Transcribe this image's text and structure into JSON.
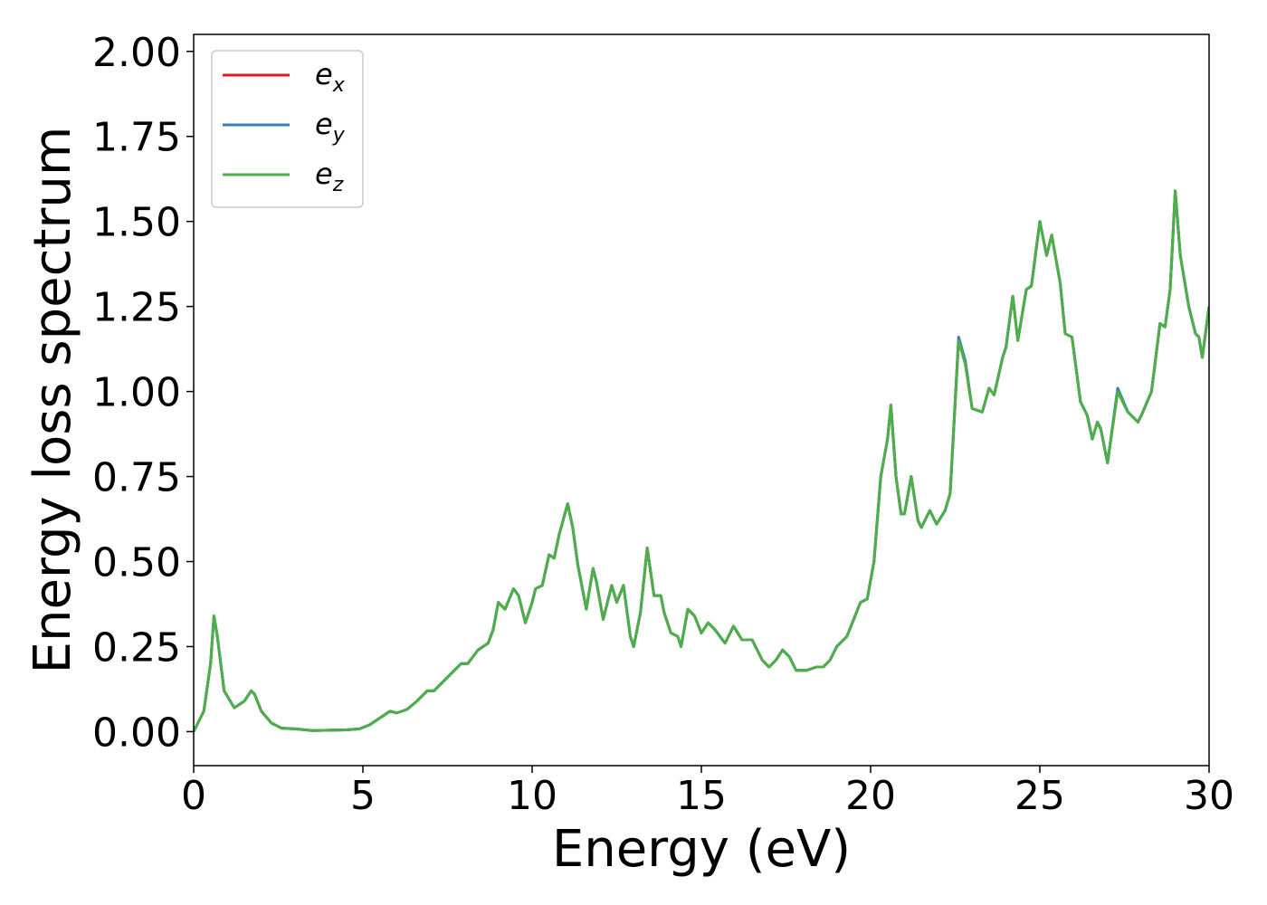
{
  "chart_data": {
    "type": "line",
    "xlabel": "Energy (eV)",
    "ylabel": "Energy loss spectrum",
    "xlim": [
      0,
      30
    ],
    "ylim": [
      -0.1,
      2.05
    ],
    "xticks": [
      0,
      5,
      10,
      15,
      20,
      25,
      30
    ],
    "yticks": [
      {
        "value": 0,
        "label": "0.00"
      },
      {
        "value": 0.25,
        "label": "0.25"
      },
      {
        "value": 0.5,
        "label": "0.50"
      },
      {
        "value": 0.75,
        "label": "0.75"
      },
      {
        "value": 1.0,
        "label": "1.00"
      },
      {
        "value": 1.25,
        "label": "1.25"
      },
      {
        "value": 1.5,
        "label": "1.50"
      },
      {
        "value": 1.75,
        "label": "1.75"
      },
      {
        "value": 2.0,
        "label": "2.00"
      }
    ],
    "grid": false,
    "legend": "upper left",
    "x": [
      0,
      0.3,
      0.5,
      0.6,
      0.7,
      0.9,
      1.2,
      1.5,
      1.7,
      1.8,
      2.0,
      2.3,
      2.6,
      3.0,
      3.5,
      4.0,
      4.5,
      4.9,
      5.2,
      5.5,
      5.8,
      6.0,
      6.3,
      6.6,
      6.9,
      7.1,
      7.4,
      7.7,
      7.9,
      8.1,
      8.4,
      8.7,
      8.85,
      9.0,
      9.2,
      9.45,
      9.6,
      9.8,
      10.0,
      10.1,
      10.3,
      10.5,
      10.65,
      10.8,
      11.05,
      11.2,
      11.35,
      11.6,
      11.8,
      11.9,
      12.1,
      12.35,
      12.5,
      12.7,
      12.9,
      13.0,
      13.2,
      13.4,
      13.6,
      13.8,
      13.9,
      14.1,
      14.3,
      14.4,
      14.6,
      14.8,
      15.0,
      15.2,
      15.4,
      15.7,
      15.95,
      16.2,
      16.5,
      16.8,
      17.0,
      17.2,
      17.4,
      17.6,
      17.8,
      18.1,
      18.4,
      18.6,
      18.8,
      19.0,
      19.3,
      19.5,
      19.7,
      19.9,
      20.1,
      20.3,
      20.5,
      20.6,
      20.75,
      20.9,
      21.0,
      21.2,
      21.4,
      21.5,
      21.75,
      21.95,
      22.2,
      22.35,
      22.6,
      22.8,
      23.0,
      23.3,
      23.5,
      23.65,
      23.9,
      24.0,
      24.2,
      24.35,
      24.6,
      24.75,
      25.0,
      25.2,
      25.35,
      25.6,
      25.75,
      25.95,
      26.2,
      26.4,
      26.55,
      26.7,
      26.8,
      27.0,
      27.3,
      27.6,
      27.9,
      28.0,
      28.3,
      28.55,
      28.7,
      28.85,
      29.0,
      29.15,
      29.4,
      29.6,
      29.7,
      29.8,
      30.0
    ],
    "series": [
      {
        "name": "ex",
        "color": "#e41a1c",
        "values": [
          0,
          0.06,
          0.2,
          0.34,
          0.28,
          0.12,
          0.07,
          0.09,
          0.12,
          0.11,
          0.06,
          0.025,
          0.01,
          0.008,
          0.003,
          0.004,
          0.005,
          0.008,
          0.02,
          0.04,
          0.06,
          0.055,
          0.065,
          0.09,
          0.12,
          0.12,
          0.15,
          0.18,
          0.2,
          0.2,
          0.24,
          0.26,
          0.3,
          0.38,
          0.36,
          0.42,
          0.4,
          0.32,
          0.38,
          0.42,
          0.43,
          0.52,
          0.51,
          0.58,
          0.67,
          0.6,
          0.49,
          0.36,
          0.48,
          0.44,
          0.33,
          0.43,
          0.38,
          0.43,
          0.28,
          0.25,
          0.35,
          0.54,
          0.4,
          0.4,
          0.35,
          0.29,
          0.28,
          0.25,
          0.36,
          0.34,
          0.29,
          0.32,
          0.3,
          0.26,
          0.31,
          0.27,
          0.27,
          0.21,
          0.19,
          0.21,
          0.24,
          0.22,
          0.18,
          0.18,
          0.19,
          0.19,
          0.21,
          0.25,
          0.28,
          0.33,
          0.38,
          0.39,
          0.5,
          0.75,
          0.86,
          0.96,
          0.75,
          0.64,
          0.64,
          0.75,
          0.62,
          0.6,
          0.65,
          0.61,
          0.65,
          0.7,
          1.15,
          1.08,
          0.95,
          0.94,
          1.01,
          0.99,
          1.1,
          1.13,
          1.28,
          1.15,
          1.3,
          1.31,
          1.5,
          1.4,
          1.46,
          1.32,
          1.17,
          1.16,
          0.97,
          0.93,
          0.86,
          0.91,
          0.89,
          0.79,
          1.0,
          0.94,
          0.91,
          0.93,
          1.0,
          1.2,
          1.19,
          1.3,
          1.59,
          1.4,
          1.25,
          1.17,
          1.16,
          1.1,
          1.25
        ]
      },
      {
        "name": "ey",
        "color": "#377eb8",
        "values": [
          0,
          0.06,
          0.2,
          0.34,
          0.28,
          0.12,
          0.07,
          0.09,
          0.12,
          0.11,
          0.06,
          0.025,
          0.01,
          0.008,
          0.003,
          0.004,
          0.005,
          0.008,
          0.02,
          0.04,
          0.06,
          0.055,
          0.065,
          0.09,
          0.12,
          0.12,
          0.15,
          0.18,
          0.2,
          0.2,
          0.24,
          0.26,
          0.3,
          0.38,
          0.36,
          0.42,
          0.4,
          0.32,
          0.38,
          0.42,
          0.43,
          0.52,
          0.51,
          0.58,
          0.67,
          0.6,
          0.49,
          0.36,
          0.48,
          0.44,
          0.33,
          0.43,
          0.38,
          0.43,
          0.28,
          0.25,
          0.35,
          0.54,
          0.4,
          0.4,
          0.35,
          0.29,
          0.28,
          0.25,
          0.36,
          0.34,
          0.29,
          0.32,
          0.3,
          0.26,
          0.31,
          0.27,
          0.27,
          0.21,
          0.19,
          0.21,
          0.24,
          0.22,
          0.18,
          0.18,
          0.19,
          0.19,
          0.21,
          0.25,
          0.28,
          0.33,
          0.38,
          0.39,
          0.5,
          0.75,
          0.86,
          0.96,
          0.75,
          0.64,
          0.64,
          0.75,
          0.62,
          0.6,
          0.65,
          0.61,
          0.65,
          0.7,
          1.16,
          1.09,
          0.95,
          0.94,
          1.01,
          0.99,
          1.1,
          1.13,
          1.28,
          1.15,
          1.3,
          1.31,
          1.5,
          1.4,
          1.46,
          1.32,
          1.17,
          1.16,
          0.97,
          0.93,
          0.86,
          0.91,
          0.89,
          0.79,
          1.01,
          0.94,
          0.91,
          0.93,
          1.0,
          1.2,
          1.19,
          1.3,
          1.59,
          1.4,
          1.25,
          1.17,
          1.16,
          1.1,
          1.25
        ]
      },
      {
        "name": "ez",
        "color": "#4daf4a",
        "values": [
          0,
          0.06,
          0.2,
          0.34,
          0.28,
          0.12,
          0.07,
          0.09,
          0.12,
          0.11,
          0.06,
          0.025,
          0.01,
          0.008,
          0.003,
          0.004,
          0.005,
          0.008,
          0.02,
          0.04,
          0.06,
          0.055,
          0.065,
          0.09,
          0.12,
          0.12,
          0.15,
          0.18,
          0.2,
          0.2,
          0.24,
          0.26,
          0.3,
          0.38,
          0.36,
          0.42,
          0.4,
          0.32,
          0.38,
          0.42,
          0.43,
          0.52,
          0.51,
          0.58,
          0.67,
          0.6,
          0.49,
          0.36,
          0.48,
          0.44,
          0.33,
          0.43,
          0.38,
          0.43,
          0.28,
          0.25,
          0.35,
          0.54,
          0.4,
          0.4,
          0.35,
          0.29,
          0.28,
          0.25,
          0.36,
          0.34,
          0.29,
          0.32,
          0.3,
          0.26,
          0.31,
          0.27,
          0.27,
          0.21,
          0.19,
          0.21,
          0.24,
          0.22,
          0.18,
          0.18,
          0.19,
          0.19,
          0.21,
          0.25,
          0.28,
          0.33,
          0.38,
          0.39,
          0.5,
          0.75,
          0.86,
          0.96,
          0.75,
          0.64,
          0.64,
          0.75,
          0.62,
          0.6,
          0.65,
          0.61,
          0.65,
          0.7,
          1.15,
          1.08,
          0.95,
          0.94,
          1.01,
          0.99,
          1.1,
          1.13,
          1.28,
          1.15,
          1.3,
          1.31,
          1.5,
          1.4,
          1.46,
          1.32,
          1.17,
          1.16,
          0.97,
          0.93,
          0.86,
          0.91,
          0.89,
          0.79,
          1.0,
          0.94,
          0.91,
          0.93,
          1.0,
          1.2,
          1.19,
          1.3,
          1.59,
          1.4,
          1.25,
          1.17,
          1.16,
          1.1,
          1.25
        ]
      }
    ]
  }
}
